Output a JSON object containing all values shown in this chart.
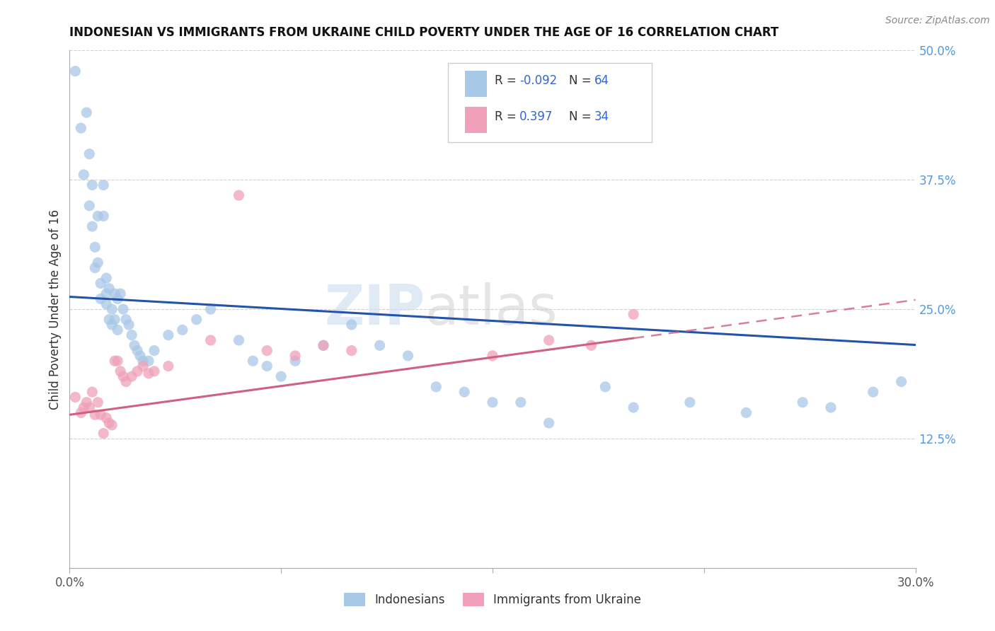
{
  "title": "INDONESIAN VS IMMIGRANTS FROM UKRAINE CHILD POVERTY UNDER THE AGE OF 16 CORRELATION CHART",
  "source": "Source: ZipAtlas.com",
  "ylabel": "Child Poverty Under the Age of 16",
  "xlim": [
    0.0,
    0.3
  ],
  "ylim": [
    0.0,
    0.5
  ],
  "xticks": [
    0.0,
    0.075,
    0.15,
    0.225,
    0.3
  ],
  "xticklabels": [
    "0.0%",
    "",
    "",
    "",
    "30.0%"
  ],
  "yticks": [
    0.0,
    0.125,
    0.25,
    0.375,
    0.5
  ],
  "yticklabels": [
    "",
    "12.5%",
    "25.0%",
    "37.5%",
    "50.0%"
  ],
  "blue_color": "#A8C8E8",
  "pink_color": "#F0A0B8",
  "blue_line_color": "#2255AA",
  "pink_line_color": "#D06080",
  "legend_R_blue": "-0.092",
  "legend_N_blue": "64",
  "legend_R_pink": "0.397",
  "legend_N_pink": "34",
  "legend_label_blue": "Indonesians",
  "legend_label_pink": "Immigrants from Ukraine",
  "blue_intercept": 0.262,
  "blue_slope": -0.155,
  "pink_intercept": 0.148,
  "pink_slope": 0.37,
  "blue_x": [
    0.002,
    0.004,
    0.005,
    0.006,
    0.007,
    0.007,
    0.008,
    0.008,
    0.009,
    0.009,
    0.01,
    0.01,
    0.011,
    0.011,
    0.012,
    0.012,
    0.013,
    0.013,
    0.013,
    0.014,
    0.014,
    0.015,
    0.015,
    0.016,
    0.016,
    0.017,
    0.017,
    0.018,
    0.019,
    0.02,
    0.021,
    0.022,
    0.023,
    0.024,
    0.025,
    0.026,
    0.028,
    0.03,
    0.035,
    0.04,
    0.045,
    0.05,
    0.06,
    0.065,
    0.07,
    0.075,
    0.08,
    0.09,
    0.1,
    0.11,
    0.12,
    0.13,
    0.14,
    0.15,
    0.16,
    0.17,
    0.19,
    0.2,
    0.22,
    0.24,
    0.26,
    0.27,
    0.285,
    0.295
  ],
  "blue_y": [
    0.48,
    0.425,
    0.38,
    0.44,
    0.35,
    0.4,
    0.37,
    0.33,
    0.31,
    0.29,
    0.34,
    0.295,
    0.275,
    0.26,
    0.37,
    0.34,
    0.28,
    0.265,
    0.255,
    0.27,
    0.24,
    0.25,
    0.235,
    0.265,
    0.24,
    0.26,
    0.23,
    0.265,
    0.25,
    0.24,
    0.235,
    0.225,
    0.215,
    0.21,
    0.205,
    0.2,
    0.2,
    0.21,
    0.225,
    0.23,
    0.24,
    0.25,
    0.22,
    0.2,
    0.195,
    0.185,
    0.2,
    0.215,
    0.235,
    0.215,
    0.205,
    0.175,
    0.17,
    0.16,
    0.16,
    0.14,
    0.175,
    0.155,
    0.16,
    0.15,
    0.16,
    0.155,
    0.17,
    0.18
  ],
  "pink_x": [
    0.002,
    0.004,
    0.005,
    0.006,
    0.007,
    0.008,
    0.009,
    0.01,
    0.011,
    0.012,
    0.013,
    0.014,
    0.015,
    0.016,
    0.017,
    0.018,
    0.019,
    0.02,
    0.022,
    0.024,
    0.026,
    0.028,
    0.03,
    0.035,
    0.05,
    0.06,
    0.07,
    0.08,
    0.09,
    0.1,
    0.15,
    0.17,
    0.185,
    0.2
  ],
  "pink_y": [
    0.165,
    0.15,
    0.155,
    0.16,
    0.155,
    0.17,
    0.148,
    0.16,
    0.148,
    0.13,
    0.145,
    0.14,
    0.138,
    0.2,
    0.2,
    0.19,
    0.185,
    0.18,
    0.185,
    0.19,
    0.195,
    0.188,
    0.19,
    0.195,
    0.22,
    0.36,
    0.21,
    0.205,
    0.215,
    0.21,
    0.205,
    0.22,
    0.215,
    0.245
  ],
  "watermark_zip": "ZIP",
  "watermark_atlas": "atlas",
  "background_color": "#FFFFFF",
  "grid_color": "#CCCCCC"
}
